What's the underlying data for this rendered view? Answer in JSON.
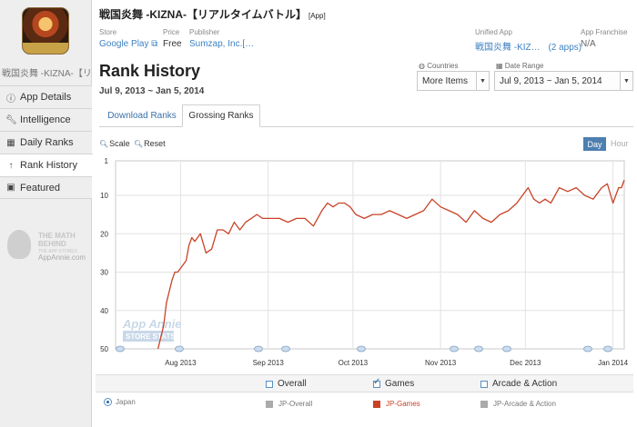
{
  "app": {
    "title": "戦国炎舞 -KIZNA-【リアルタイムバトル】",
    "title_tag": "[App]",
    "sidebar_name": "戦国炎舞 -KIZNA-【リア…",
    "store_label": "Store",
    "store_value": "Google Play ⧉",
    "price_label": "Price",
    "price_value": "Free",
    "publisher_label": "Publisher",
    "publisher_value": "Sumzap, Inc.[…",
    "unified_label": "Unified App",
    "unified_value": "戦国炎舞 -KIZ…",
    "unified_count": "(2 apps)",
    "franchise_label": "App Franchise",
    "franchise_value": "N/A"
  },
  "sidebar": {
    "items": [
      {
        "icon": "info-icon",
        "label": "App Details"
      },
      {
        "icon": "wrench-icon",
        "label": "Intelligence"
      },
      {
        "icon": "calendar-icon",
        "label": "Daily Ranks"
      },
      {
        "icon": "arrow-up-icon",
        "label": "Rank History"
      },
      {
        "icon": "bookmark-icon",
        "label": "Featured"
      }
    ],
    "promo_line1": "THE MATH",
    "promo_line2": "BEHIND",
    "promo_line3": "THE APP STORES",
    "promo_site": "AppAnnie.com"
  },
  "page": {
    "title": "Rank History",
    "date_range_text": "Jul 9, 2013 ~ Jan 5, 2014"
  },
  "controls": {
    "countries_label": "Countries",
    "countries_value": "More Items",
    "date_label": "Date Range",
    "date_value": "Jul 9, 2013 ~ Jan 5, 2014"
  },
  "tabs": [
    {
      "label": "Download Ranks",
      "active": false
    },
    {
      "label": "Grossing Ranks",
      "active": true
    }
  ],
  "toolbar": {
    "scale_label": "Scale",
    "reset_label": "Reset",
    "day_label": "Day",
    "hour_label": "Hour"
  },
  "chart_data": {
    "type": "line",
    "y_inverted": true,
    "ylim": [
      1,
      50
    ],
    "y_ticks": [
      "1",
      "10",
      "20",
      "30",
      "40",
      "50"
    ],
    "x_ticks": [
      "Aug 2013",
      "Sep 2013",
      "Oct 2013",
      "Nov 2013",
      "Dec 2013",
      "Jan 2014"
    ],
    "watermark_line1": "App Annie",
    "watermark_line2": "STORE STATS",
    "color": "#c94226",
    "series": [
      {
        "name": "JP-Games",
        "x": [
          "2013-07-24",
          "2013-07-26",
          "2013-07-27",
          "2013-07-28",
          "2013-07-29",
          "2013-07-30",
          "2013-07-31",
          "2013-08-01",
          "2013-08-02",
          "2013-08-03",
          "2013-08-04",
          "2013-08-05",
          "2013-08-06",
          "2013-08-08",
          "2013-08-10",
          "2013-08-12",
          "2013-08-14",
          "2013-08-16",
          "2013-08-18",
          "2013-08-20",
          "2013-08-22",
          "2013-08-24",
          "2013-08-26",
          "2013-08-28",
          "2013-08-30",
          "2013-09-01",
          "2013-09-03",
          "2013-09-05",
          "2013-09-08",
          "2013-09-11",
          "2013-09-14",
          "2013-09-17",
          "2013-09-20",
          "2013-09-22",
          "2013-09-24",
          "2013-09-26",
          "2013-09-28",
          "2013-09-30",
          "2013-10-02",
          "2013-10-05",
          "2013-10-08",
          "2013-10-11",
          "2013-10-14",
          "2013-10-17",
          "2013-10-20",
          "2013-10-23",
          "2013-10-26",
          "2013-10-29",
          "2013-11-01",
          "2013-11-04",
          "2013-11-07",
          "2013-11-10",
          "2013-11-13",
          "2013-11-16",
          "2013-11-19",
          "2013-11-22",
          "2013-11-25",
          "2013-11-28",
          "2013-11-30",
          "2013-12-02",
          "2013-12-04",
          "2013-12-06",
          "2013-12-08",
          "2013-12-10",
          "2013-12-13",
          "2013-12-16",
          "2013-12-19",
          "2013-12-22",
          "2013-12-25",
          "2013-12-28",
          "2013-12-30",
          "2014-01-01",
          "2014-01-03",
          "2014-01-04",
          "2014-01-05"
        ],
        "values": [
          50,
          44,
          38,
          35,
          32,
          30,
          30,
          29,
          28,
          27,
          23,
          21,
          22,
          20,
          25,
          24,
          19,
          19,
          20,
          17,
          19,
          17,
          16,
          15,
          16,
          16,
          16,
          16,
          17,
          16,
          16,
          18,
          14,
          12,
          13,
          12,
          12,
          13,
          15,
          16,
          15,
          15,
          14,
          15,
          16,
          15,
          14,
          11,
          13,
          14,
          15,
          17,
          14,
          16,
          17,
          15,
          14,
          12,
          10,
          8,
          11,
          12,
          11,
          12,
          8,
          9,
          8,
          10,
          11,
          8,
          7,
          12,
          8,
          8,
          6
        ]
      }
    ]
  },
  "legend": {
    "headers": [
      {
        "label": "Overall",
        "checked": false
      },
      {
        "label": "Games",
        "checked": true
      },
      {
        "label": "Arcade & Action",
        "checked": false
      }
    ],
    "country": "Japan",
    "rows": [
      {
        "label": "JP-Overall",
        "color": "#aaaaaa"
      },
      {
        "label": "JP-Games",
        "color": "#c94226"
      },
      {
        "label": "JP-Arcade & Action",
        "color": "#aaaaaa"
      }
    ]
  }
}
